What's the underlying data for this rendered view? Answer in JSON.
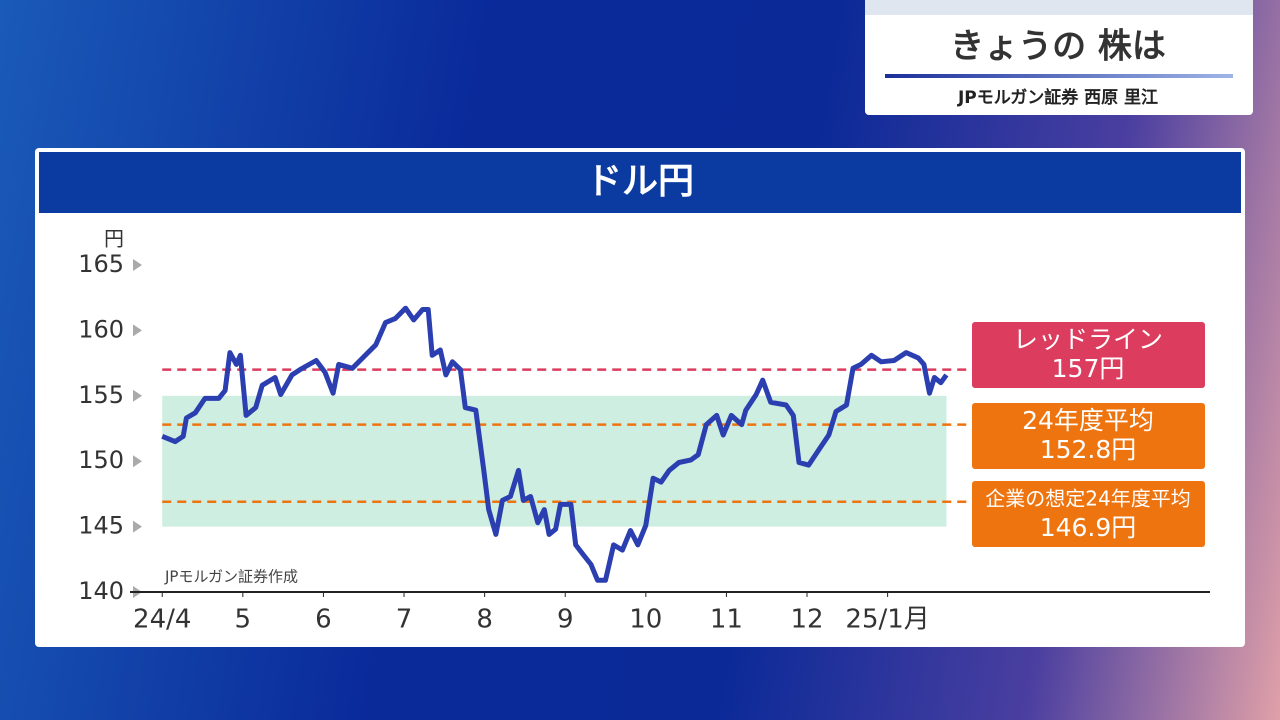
{
  "header": {
    "title": "きょうの 株は",
    "presenter": "JPモルガン証券 西原 里江"
  },
  "chart_data": {
    "type": "line",
    "title": "ドル円",
    "y_label": "円",
    "source": "JPモルガン証券作成",
    "x": [
      0,
      0.16,
      0.26,
      0.3,
      0.41,
      0.53,
      0.7,
      0.78,
      0.84,
      0.92,
      0.97,
      1.04,
      1.16,
      1.24,
      1.4,
      1.47,
      1.61,
      1.71,
      1.91,
      2.02,
      2.12,
      2.19,
      2.36,
      2.52,
      2.65,
      2.77,
      2.89,
      3.02,
      3.12,
      3.23,
      3.3,
      3.35,
      3.45,
      3.52,
      3.6,
      3.7,
      3.76,
      3.89,
      3.99,
      4.05,
      4.14,
      4.22,
      4.32,
      4.42,
      4.48,
      4.57,
      4.66,
      4.74,
      4.8,
      4.88,
      4.94,
      5.07,
      5.13,
      5.23,
      5.32,
      5.4,
      5.5,
      5.6,
      5.71,
      5.81,
      5.9,
      6.0,
      6.09,
      6.19,
      6.29,
      6.41,
      6.56,
      6.65,
      6.75,
      6.88,
      6.96,
      7.06,
      7.19,
      7.24,
      7.37,
      7.45,
      7.55,
      7.74,
      7.83,
      7.9,
      8.02,
      8.15,
      8.27,
      8.36,
      8.49,
      8.57,
      8.67,
      8.8,
      8.92,
      9.08,
      9.23,
      9.38,
      9.45,
      9.52,
      9.58,
      9.66,
      9.73
    ],
    "values": [
      151.9,
      151.5,
      151.9,
      153.3,
      153.7,
      154.8,
      154.8,
      155.4,
      158.3,
      157.4,
      158.1,
      153.5,
      154.1,
      155.8,
      156.4,
      155.1,
      156.6,
      157.0,
      157.7,
      156.8,
      155.2,
      157.4,
      157.1,
      158.1,
      158.9,
      160.6,
      160.9,
      161.7,
      160.8,
      161.6,
      161.6,
      158.1,
      158.5,
      156.6,
      157.6,
      157.0,
      154.1,
      153.9,
      149.3,
      146.3,
      144.4,
      147.0,
      147.3,
      149.3,
      147.0,
      147.3,
      145.3,
      146.3,
      144.4,
      144.8,
      146.7,
      146.7,
      143.6,
      142.8,
      142.1,
      140.9,
      140.9,
      143.6,
      143.2,
      144.7,
      143.6,
      145.1,
      148.7,
      148.4,
      149.3,
      149.9,
      150.1,
      150.5,
      152.8,
      153.5,
      152.0,
      153.5,
      152.8,
      153.9,
      155.1,
      156.2,
      154.5,
      154.3,
      153.5,
      149.9,
      149.7,
      150.9,
      152.0,
      153.8,
      154.3,
      157.1,
      157.4,
      158.1,
      157.6,
      157.7,
      158.3,
      157.9,
      157.4,
      155.2,
      156.4,
      156.0,
      156.6
    ],
    "color": "#2b3fb0",
    "xlim": [
      -0.4,
      13
    ],
    "xticks": [
      {
        "value": 0,
        "label": "24/4"
      },
      {
        "value": 1,
        "label": "5"
      },
      {
        "value": 2,
        "label": "6"
      },
      {
        "value": 3,
        "label": "7"
      },
      {
        "value": 4,
        "label": "8"
      },
      {
        "value": 5,
        "label": "9"
      },
      {
        "value": 6,
        "label": "10"
      },
      {
        "value": 7,
        "label": "11"
      },
      {
        "value": 8,
        "label": "12"
      },
      {
        "value": 9,
        "label": "25/1月"
      }
    ],
    "ylim": [
      140,
      165
    ],
    "yticks": [
      140,
      145,
      150,
      155,
      160,
      165
    ],
    "band": {
      "range": [
        145,
        155
      ],
      "color": "#cdeee0"
    },
    "reference_lines": [
      {
        "label": "レッドライン",
        "value": 157,
        "value_label": "157円",
        "color": "#dc3d5e"
      },
      {
        "label": "24年度平均",
        "value": 152.8,
        "value_label": "152.8円",
        "color": "#ee7410"
      },
      {
        "label": "企業の想定24年度平均",
        "value": 146.9,
        "value_label": "146.9円",
        "color": "#ee7410"
      }
    ]
  }
}
